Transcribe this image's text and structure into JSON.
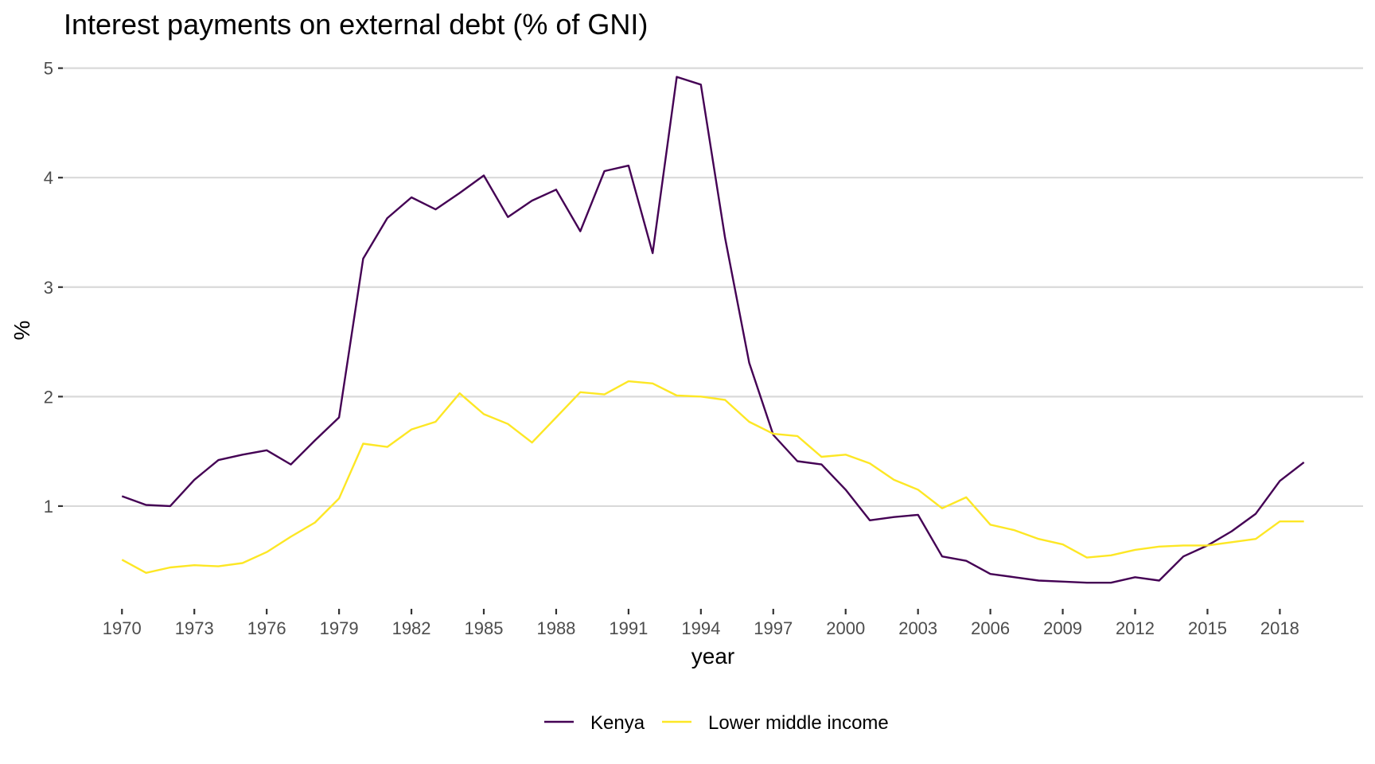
{
  "chart_data": {
    "type": "line",
    "title": "Interest payments on external debt (% of GNI)",
    "xlabel": "year",
    "ylabel": "%",
    "xlim": [
      1967.55,
      2021.45
    ],
    "ylim": [
      0.069,
      5.15
    ],
    "grid": true,
    "legend_position": "bottom",
    "x_ticks": [
      1970,
      1973,
      1976,
      1979,
      1982,
      1985,
      1988,
      1991,
      1994,
      1997,
      2000,
      2003,
      2006,
      2009,
      2012,
      2015,
      2018
    ],
    "x_tick_labels": [
      "1970",
      "1973",
      "1976",
      "1979",
      "1982",
      "1985",
      "1988",
      "1991",
      "1994",
      "1997",
      "2000",
      "2003",
      "2006",
      "2009",
      "2012",
      "2015",
      "2018"
    ],
    "y_ticks": [
      1,
      2,
      3,
      4,
      5
    ],
    "y_tick_labels": [
      "1",
      "2",
      "3",
      "4",
      "5"
    ],
    "x": [
      1970,
      1971,
      1972,
      1973,
      1974,
      1975,
      1976,
      1977,
      1978,
      1979,
      1980,
      1981,
      1982,
      1983,
      1984,
      1985,
      1986,
      1987,
      1988,
      1989,
      1990,
      1991,
      1992,
      1993,
      1994,
      1995,
      1996,
      1997,
      1998,
      1999,
      2000,
      2001,
      2002,
      2003,
      2004,
      2005,
      2006,
      2007,
      2008,
      2009,
      2010,
      2011,
      2012,
      2013,
      2014,
      2015,
      2016,
      2017,
      2018,
      2019
    ],
    "series": [
      {
        "name": "Kenya",
        "color": "#440154",
        "values": [
          1.09,
          1.01,
          1.0,
          1.24,
          1.42,
          1.47,
          1.51,
          1.38,
          1.6,
          1.81,
          3.26,
          3.63,
          3.82,
          3.71,
          3.86,
          4.02,
          3.64,
          3.79,
          3.89,
          3.51,
          4.06,
          4.11,
          3.31,
          4.92,
          4.85,
          3.45,
          2.31,
          1.65,
          1.41,
          1.38,
          1.15,
          0.87,
          0.9,
          0.92,
          0.54,
          0.5,
          0.38,
          0.35,
          0.32,
          0.31,
          0.3,
          0.3,
          0.35,
          0.32,
          0.54,
          0.64,
          0.77,
          0.93,
          1.23,
          1.4
        ]
      },
      {
        "name": "Lower middle income",
        "color": "#FDE725",
        "values": [
          0.51,
          0.39,
          0.44,
          0.46,
          0.45,
          0.48,
          0.58,
          0.72,
          0.85,
          1.07,
          1.57,
          1.54,
          1.7,
          1.77,
          2.03,
          1.84,
          1.75,
          1.58,
          1.81,
          2.04,
          2.02,
          2.14,
          2.12,
          2.01,
          2.0,
          1.97,
          1.77,
          1.66,
          1.64,
          1.45,
          1.47,
          1.39,
          1.24,
          1.15,
          0.98,
          1.08,
          0.83,
          0.78,
          0.7,
          0.65,
          0.53,
          0.55,
          0.6,
          0.63,
          0.64,
          0.64,
          0.67,
          0.7,
          0.86,
          0.86
        ]
      }
    ]
  }
}
